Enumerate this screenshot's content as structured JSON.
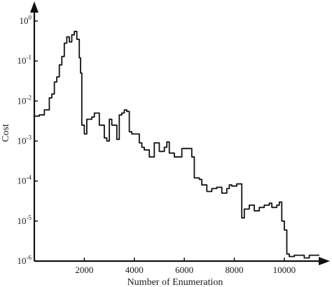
{
  "chart_data": {
    "type": "line",
    "xlabel": "Number of Enumeration",
    "ylabel": "Cost",
    "xlim": [
      0,
      11600
    ],
    "ylim": [
      1e-06,
      1.6
    ],
    "y_scale": "log",
    "x_ticks": [
      2000,
      4000,
      6000,
      8000,
      10000
    ],
    "x_tick_labels": [
      "2000",
      "4000",
      "6000",
      "8000",
      "10000"
    ],
    "y_ticks": [
      {
        "value": 1,
        "base": "10",
        "exp": "0"
      },
      {
        "value": 0.1,
        "base": "10",
        "exp": "-1"
      },
      {
        "value": 0.01,
        "base": "10",
        "exp": "-2"
      },
      {
        "value": 0.001,
        "base": "10",
        "exp": "-3"
      },
      {
        "value": 0.0001,
        "base": "10",
        "exp": "-4"
      },
      {
        "value": 1e-05,
        "base": "10",
        "exp": "-5"
      },
      {
        "value": 1e-06,
        "base": "10",
        "exp": "-6"
      }
    ],
    "grid": false,
    "line_color": "#111111",
    "series": [
      {
        "x": [
          0,
          200,
          400,
          600,
          700,
          800,
          900,
          1000,
          1100,
          1200,
          1300,
          1400,
          1500,
          1600,
          1700,
          1800,
          1850,
          1900,
          2000,
          2100,
          2300,
          2400,
          2600,
          2800,
          2900,
          3000,
          3100,
          3300,
          3400,
          3500,
          3600,
          3700,
          3800,
          3900,
          4200,
          4300,
          4400,
          4600,
          4800,
          5000,
          5200,
          5300,
          5400,
          5600,
          5700,
          5900,
          6100,
          6300,
          6400,
          6600,
          6700,
          6900,
          7100,
          7300,
          7500,
          7700,
          7800,
          7900,
          8100,
          8300,
          8400,
          8600,
          8800,
          9000,
          9200,
          9400,
          9500,
          9700,
          9800,
          9900,
          10000,
          10100,
          10200,
          10400,
          10600,
          10800,
          11000,
          11200,
          11400
        ],
        "y": [
          0.0042,
          0.0045,
          0.006,
          0.012,
          0.015,
          0.03,
          0.04,
          0.08,
          0.13,
          0.28,
          0.4,
          0.3,
          0.45,
          0.55,
          0.35,
          0.12,
          0.05,
          0.0025,
          0.0015,
          0.0035,
          0.004,
          0.005,
          0.0025,
          0.0012,
          0.001,
          0.0035,
          0.0025,
          0.0011,
          0.0045,
          0.005,
          0.006,
          0.0055,
          0.0017,
          0.0015,
          0.0009,
          0.0007,
          0.0006,
          0.0004,
          0.0009,
          0.00055,
          0.0007,
          0.00095,
          0.0005,
          0.0004,
          0.0004,
          0.00065,
          0.00065,
          0.0004,
          0.00012,
          0.00011,
          8e-05,
          5.5e-05,
          6.5e-05,
          7e-05,
          5e-05,
          6.5e-05,
          8e-05,
          7.5e-05,
          8.5e-05,
          1.2e-05,
          2e-05,
          2.5e-05,
          1.8e-05,
          2.2e-05,
          2.5e-05,
          2.8e-05,
          2.2e-05,
          2.5e-05,
          3e-05,
          1e-05,
          6e-06,
          1.5e-06,
          1.3e-06,
          1.4e-06,
          1.4e-06,
          1.2e-06,
          1.4e-06,
          1.4e-06,
          1.4e-06
        ]
      }
    ]
  }
}
